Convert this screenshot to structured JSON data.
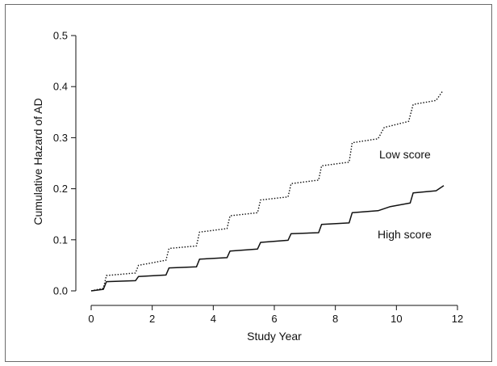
{
  "chart_data": {
    "type": "line",
    "title": "",
    "xlabel": "Study Year",
    "ylabel": "Cumulative Hazard of AD",
    "xlim": [
      0,
      12
    ],
    "ylim": [
      0,
      0.5
    ],
    "x_ticks": [
      "0",
      "2",
      "4",
      "6",
      "8",
      "10",
      "12"
    ],
    "y_ticks": [
      "0.0",
      "0.1",
      "0.2",
      "0.3",
      "0.4",
      "0.5"
    ],
    "grid": false,
    "legend": "inline labels",
    "series": [
      {
        "name": "Low score",
        "style": "dotted",
        "color": "#111111",
        "x": [
          0,
          0.4,
          0.5,
          1.45,
          1.55,
          2.45,
          2.55,
          3.45,
          3.55,
          4.45,
          4.55,
          5.45,
          5.55,
          6.45,
          6.55,
          7.45,
          7.55,
          8.45,
          8.55,
          9.4,
          9.6,
          10.4,
          10.55,
          11.3,
          11.5
        ],
        "y": [
          0.0,
          0.005,
          0.03,
          0.035,
          0.05,
          0.06,
          0.083,
          0.088,
          0.115,
          0.122,
          0.147,
          0.153,
          0.178,
          0.184,
          0.21,
          0.217,
          0.245,
          0.252,
          0.29,
          0.298,
          0.32,
          0.332,
          0.365,
          0.373,
          0.39
        ]
      },
      {
        "name": "High score",
        "style": "solid",
        "color": "#111111",
        "x": [
          0,
          0.4,
          0.5,
          1.45,
          1.55,
          2.45,
          2.55,
          3.45,
          3.55,
          4.45,
          4.55,
          5.45,
          5.55,
          6.45,
          6.55,
          7.45,
          7.55,
          8.45,
          8.55,
          9.4,
          9.8,
          10.45,
          10.55,
          11.3,
          11.55
        ],
        "y": [
          0.0,
          0.003,
          0.018,
          0.02,
          0.028,
          0.031,
          0.045,
          0.047,
          0.062,
          0.065,
          0.078,
          0.082,
          0.095,
          0.099,
          0.112,
          0.114,
          0.13,
          0.133,
          0.153,
          0.157,
          0.165,
          0.172,
          0.192,
          0.196,
          0.206
        ]
      }
    ]
  }
}
